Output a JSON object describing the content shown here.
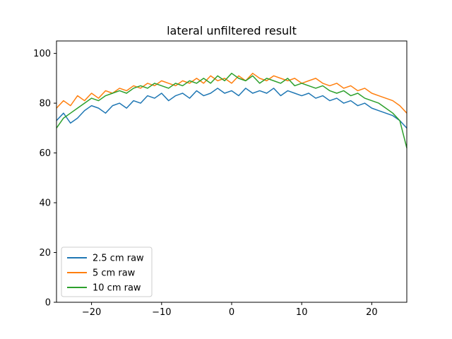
{
  "chart_data": {
    "type": "line",
    "title": "lateral unfiltered result",
    "xlabel": "",
    "ylabel": "",
    "xlim": [
      -25,
      25
    ],
    "ylim": [
      0,
      105
    ],
    "xticks": [
      -20,
      -10,
      0,
      10,
      20
    ],
    "yticks": [
      0,
      20,
      40,
      60,
      80,
      100
    ],
    "xtick_labels": [
      "−20",
      "−10",
      "0",
      "10",
      "20"
    ],
    "ytick_labels": [
      "0",
      "20",
      "40",
      "60",
      "80",
      "100"
    ],
    "grid": false,
    "legend_position": "lower-left",
    "legend_entries": [
      "2.5 cm raw",
      "5 cm raw",
      "10 cm raw"
    ],
    "x": [
      -25,
      -24,
      -23,
      -22,
      -21,
      -20,
      -19,
      -18,
      -17,
      -16,
      -15,
      -14,
      -13,
      -12,
      -11,
      -10,
      -9,
      -8,
      -7,
      -6,
      -5,
      -4,
      -3,
      -2,
      -1,
      0,
      1,
      2,
      3,
      4,
      5,
      6,
      7,
      8,
      9,
      10,
      11,
      12,
      13,
      14,
      15,
      16,
      17,
      18,
      19,
      20,
      21,
      22,
      23,
      24,
      25
    ],
    "series": [
      {
        "name": "2.5 cm raw",
        "color": "#1f77b4",
        "values": [
          73,
          76,
          72,
          74,
          77,
          79,
          78,
          76,
          79,
          80,
          78,
          81,
          80,
          83,
          82,
          84,
          81,
          83,
          84,
          82,
          85,
          83,
          84,
          86,
          84,
          85,
          83,
          86,
          84,
          85,
          84,
          86,
          83,
          85,
          84,
          83,
          84,
          82,
          83,
          81,
          82,
          80,
          81,
          79,
          80,
          78,
          77,
          76,
          75,
          73,
          70
        ]
      },
      {
        "name": "5 cm raw",
        "color": "#ff7f0e",
        "values": [
          78,
          81,
          79,
          83,
          81,
          84,
          82,
          85,
          84,
          86,
          85,
          87,
          86,
          88,
          87,
          89,
          88,
          87,
          89,
          88,
          90,
          88,
          91,
          89,
          90,
          88,
          91,
          89,
          92,
          90,
          89,
          91,
          90,
          89,
          90,
          88,
          89,
          90,
          88,
          87,
          88,
          86,
          87,
          85,
          86,
          84,
          83,
          82,
          81,
          79,
          76
        ]
      },
      {
        "name": "10 cm raw",
        "color": "#2ca02c",
        "values": [
          70,
          74,
          76,
          78,
          80,
          82,
          81,
          83,
          84,
          85,
          84,
          86,
          87,
          86,
          88,
          87,
          86,
          88,
          87,
          89,
          88,
          90,
          88,
          91,
          89,
          92,
          90,
          89,
          91,
          88,
          90,
          89,
          88,
          90,
          87,
          88,
          87,
          86,
          87,
          85,
          84,
          85,
          83,
          84,
          82,
          81,
          80,
          78,
          76,
          73,
          62
        ]
      }
    ]
  }
}
